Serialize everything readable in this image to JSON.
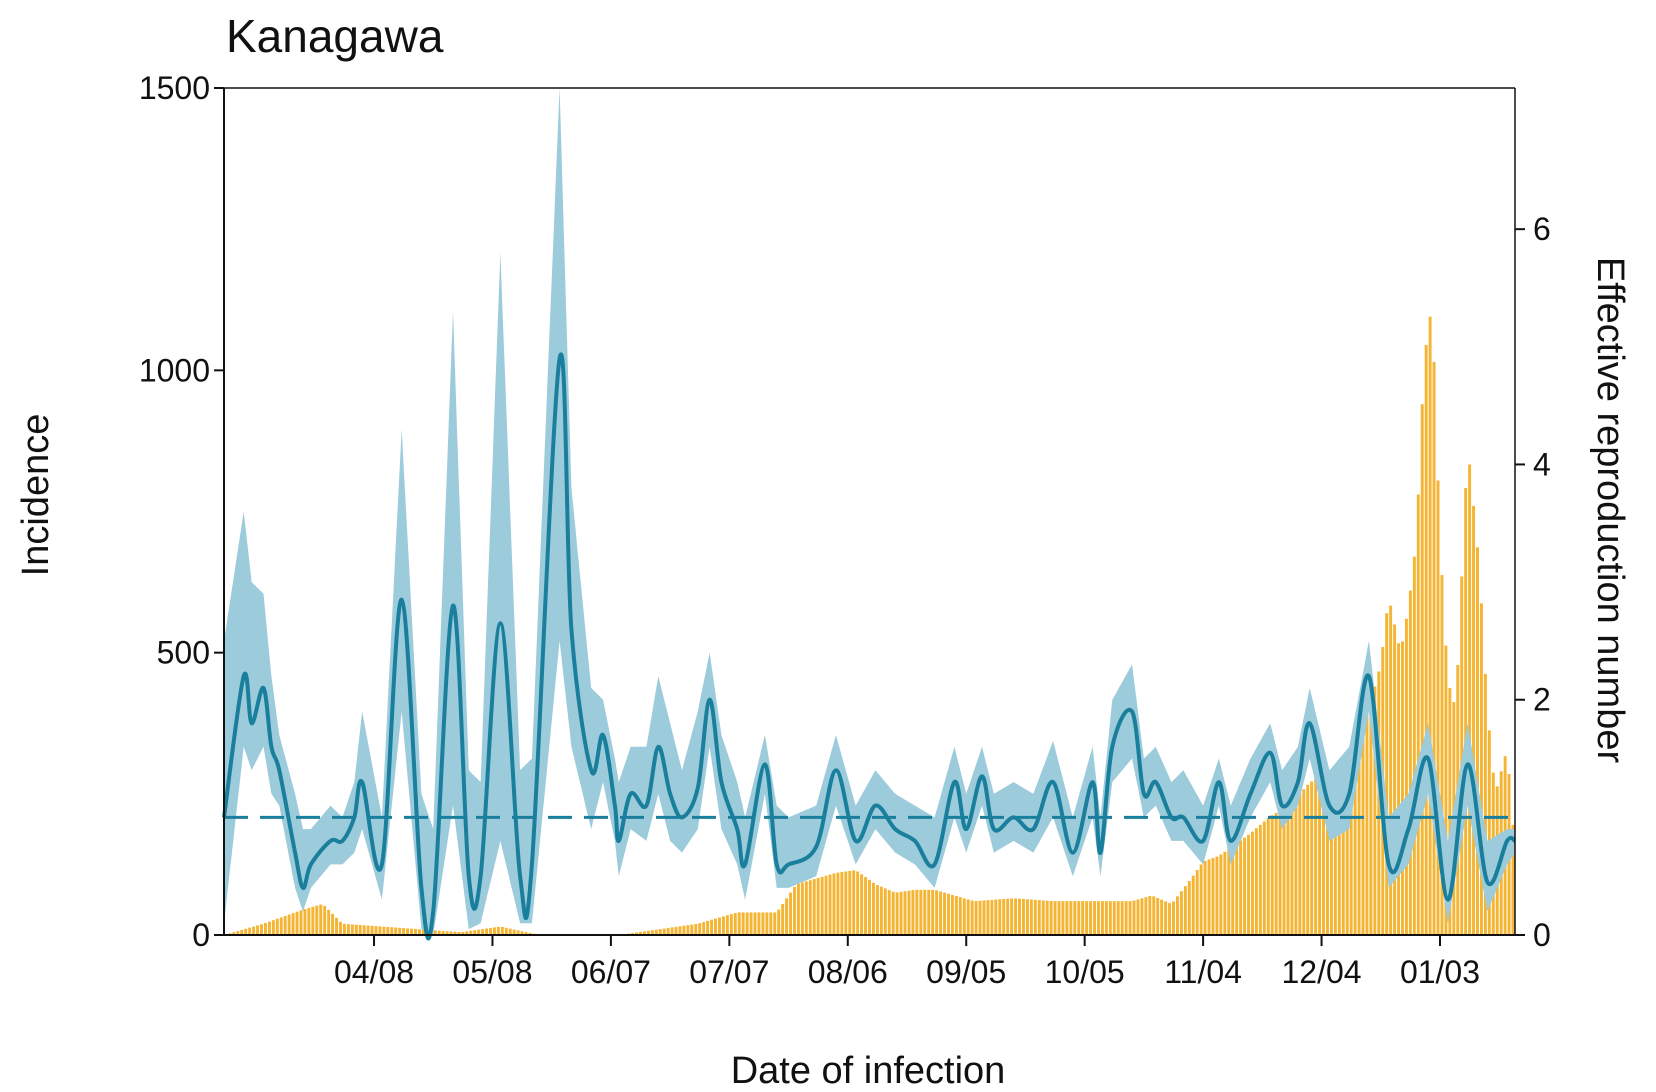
{
  "chart_data": {
    "type": "bar+line",
    "title": "Kanagawa",
    "xlabel": "Date of infection",
    "ylabel_left": "Incidence",
    "ylabel_right": "Effective reproduction number",
    "x_ticks": [
      "04/08",
      "05/08",
      "06/07",
      "07/07",
      "08/06",
      "09/05",
      "10/05",
      "11/04",
      "12/04",
      "01/03"
    ],
    "x_tick_day_index": [
      38,
      68,
      98,
      128,
      158,
      188,
      218,
      248,
      278,
      308
    ],
    "days_total": 327,
    "ylim_left": [
      0,
      1500
    ],
    "yticks_left": [
      0,
      500,
      1000,
      1500
    ],
    "ylim_right": [
      0,
      7.2
    ],
    "yticks_right": [
      0,
      2,
      4,
      6
    ],
    "threshold_rt": 1.0,
    "colors": {
      "bars": "#f5b534",
      "rt_line": "#1a7f9c",
      "rt_band": "#9ccbdb",
      "threshold": "#1a7f9c",
      "axis": "#111111"
    },
    "incidence_knots": {
      "day": [
        0,
        10,
        20,
        25,
        30,
        40,
        50,
        60,
        70,
        80,
        100,
        110,
        120,
        130,
        140,
        145,
        150,
        155,
        160,
        165,
        170,
        175,
        180,
        190,
        200,
        210,
        220,
        230,
        235,
        240,
        245,
        248,
        252,
        256,
        260,
        265,
        270,
        275,
        280,
        285,
        290,
        293,
        295,
        298,
        300,
        302,
        304,
        306,
        308,
        310,
        312,
        315,
        318,
        320,
        322,
        325,
        327
      ],
      "value": [
        0,
        20,
        45,
        55,
        20,
        15,
        10,
        5,
        15,
        0,
        0,
        10,
        20,
        40,
        40,
        90,
        100,
        110,
        115,
        90,
        75,
        80,
        80,
        60,
        65,
        60,
        60,
        60,
        70,
        55,
        100,
        130,
        140,
        160,
        180,
        210,
        230,
        270,
        290,
        300,
        400,
        480,
        600,
        500,
        580,
        700,
        1020,
        1120,
        700,
        450,
        400,
        870,
        650,
        400,
        250,
        330,
        150
      ]
    },
    "rt_series": {
      "day": [
        0,
        5,
        7,
        10,
        12,
        14,
        18,
        20,
        22,
        27,
        30,
        33,
        35,
        40,
        45,
        50,
        53,
        58,
        62,
        65,
        70,
        75,
        78,
        85,
        88,
        93,
        96,
        99,
        100,
        103,
        107,
        110,
        113,
        116,
        120,
        123,
        126,
        130,
        132,
        137,
        140,
        143,
        150,
        155,
        160,
        165,
        170,
        175,
        180,
        185,
        188,
        192,
        195,
        200,
        205,
        210,
        215,
        220,
        222,
        225,
        230,
        233,
        236,
        240,
        243,
        248,
        252,
        255,
        260,
        265,
        268,
        272,
        275,
        280,
        285,
        290,
        295,
        300,
        305,
        310,
        315,
        320,
        325,
        327
      ],
      "rt": [
        1.0,
        2.2,
        1.8,
        2.1,
        1.6,
        1.4,
        0.7,
        0.4,
        0.6,
        0.8,
        0.8,
        1.0,
        1.3,
        0.6,
        2.85,
        0.4,
        0.2,
        2.8,
        0.5,
        0.5,
        2.65,
        0.5,
        0.6,
        4.9,
        2.6,
        1.4,
        1.7,
        1.1,
        0.8,
        1.2,
        1.1,
        1.6,
        1.2,
        1.0,
        1.25,
        2.0,
        1.3,
        0.9,
        0.6,
        1.45,
        0.6,
        0.6,
        0.75,
        1.4,
        0.8,
        1.1,
        0.9,
        0.8,
        0.6,
        1.3,
        0.9,
        1.35,
        0.9,
        1.0,
        0.9,
        1.3,
        0.7,
        1.3,
        0.7,
        1.6,
        1.9,
        1.2,
        1.3,
        1.0,
        1.0,
        0.8,
        1.3,
        0.8,
        1.2,
        1.55,
        1.1,
        1.3,
        1.8,
        1.1,
        1.2,
        2.2,
        0.6,
        0.9,
        1.5,
        0.3,
        1.45,
        0.45,
        0.8,
        0.8
      ],
      "upper": [
        2.5,
        3.6,
        3.0,
        2.9,
        2.2,
        1.7,
        1.2,
        0.9,
        0.9,
        1.1,
        1.0,
        1.3,
        1.9,
        1.0,
        4.3,
        1.2,
        0.9,
        5.3,
        1.4,
        1.3,
        5.8,
        1.4,
        1.5,
        7.2,
        3.8,
        2.1,
        2.0,
        1.5,
        1.3,
        1.6,
        1.6,
        2.2,
        1.8,
        1.4,
        1.9,
        2.4,
        1.7,
        1.3,
        1.0,
        1.7,
        1.1,
        1.0,
        1.1,
        1.7,
        1.1,
        1.4,
        1.2,
        1.1,
        1.0,
        1.6,
        1.2,
        1.6,
        1.2,
        1.3,
        1.2,
        1.65,
        1.0,
        1.6,
        1.0,
        2.0,
        2.3,
        1.5,
        1.6,
        1.3,
        1.4,
        1.1,
        1.5,
        1.1,
        1.5,
        1.8,
        1.4,
        1.6,
        2.1,
        1.4,
        1.6,
        2.5,
        1.0,
        1.2,
        1.8,
        0.8,
        1.8,
        0.8,
        0.9,
        0.9
      ],
      "lower": [
        0.1,
        1.6,
        1.4,
        1.6,
        1.2,
        1.1,
        0.4,
        0.2,
        0.4,
        0.6,
        0.6,
        0.7,
        0.9,
        0.3,
        1.9,
        0.05,
        0.0,
        1.1,
        0.05,
        0.1,
        0.8,
        0.1,
        0.1,
        2.5,
        1.6,
        0.9,
        1.3,
        0.8,
        0.5,
        0.9,
        0.8,
        1.2,
        0.8,
        0.7,
        0.9,
        1.6,
        0.9,
        0.6,
        0.3,
        1.2,
        0.4,
        0.4,
        0.5,
        1.1,
        0.6,
        0.9,
        0.7,
        0.6,
        0.4,
        1.0,
        0.7,
        1.1,
        0.7,
        0.8,
        0.7,
        1.0,
        0.5,
        1.0,
        0.5,
        1.3,
        1.5,
        1.0,
        1.1,
        0.8,
        0.8,
        0.6,
        1.1,
        0.6,
        1.0,
        1.3,
        0.9,
        1.1,
        1.5,
        0.8,
        0.9,
        1.9,
        0.4,
        0.6,
        1.2,
        0.1,
        1.1,
        0.2,
        0.6,
        0.7
      ]
    }
  }
}
